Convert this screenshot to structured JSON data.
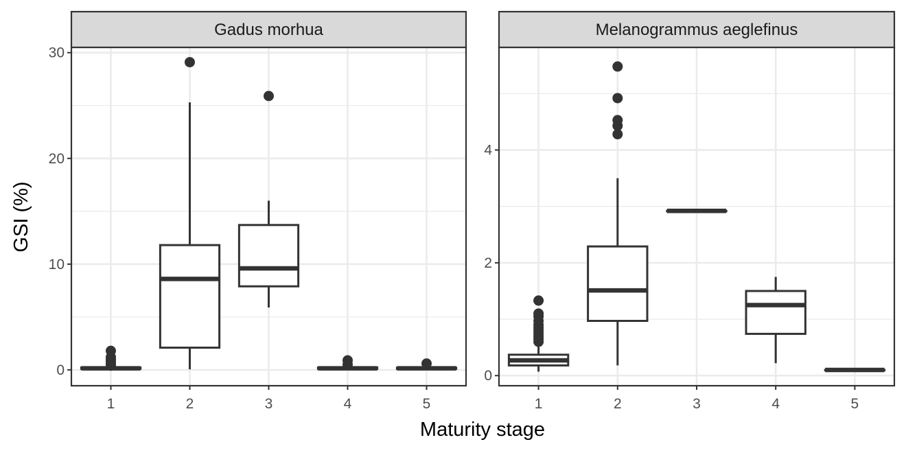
{
  "chart_data": {
    "type": "boxplot",
    "xlabel": "Maturity stage",
    "ylabel": "GSI (%)",
    "grid": true,
    "legend": "none",
    "colors": {
      "box": "#333333",
      "grid": "#ebebeb",
      "strip": "#d9d9d9",
      "panel_border": "#333333"
    },
    "panels": [
      {
        "title": "Gadus morhua",
        "categories": [
          "1",
          "2",
          "3",
          "4",
          "5"
        ],
        "ylim": [
          -1.5,
          30.5
        ],
        "yticks": [
          0,
          10,
          20,
          30
        ],
        "boxes": [
          {
            "category": "1",
            "min": 0.02,
            "q1": 0.1,
            "median": 0.15,
            "q3": 0.22,
            "max": 0.35,
            "outliers": [
              0.4,
              0.6,
              0.8,
              1.0,
              1.2,
              1.8
            ]
          },
          {
            "category": "2",
            "min": 0.05,
            "q1": 2.1,
            "median": 8.6,
            "q3": 11.8,
            "max": 25.3,
            "outliers": [
              29.1
            ]
          },
          {
            "category": "3",
            "min": 5.9,
            "q1": 7.9,
            "median": 9.6,
            "q3": 13.7,
            "max": 16.0,
            "outliers": [
              25.9
            ]
          },
          {
            "category": "4",
            "min": 0.02,
            "q1": 0.1,
            "median": 0.15,
            "q3": 0.22,
            "max": 0.35,
            "outliers": [
              0.5,
              0.9
            ]
          },
          {
            "category": "5",
            "min": 0.02,
            "q1": 0.1,
            "median": 0.15,
            "q3": 0.2,
            "max": 0.3,
            "outliers": [
              0.6
            ]
          }
        ]
      },
      {
        "title": "Melanogrammus aeglefinus",
        "categories": [
          "1",
          "2",
          "3",
          "4",
          "5"
        ],
        "ylim": [
          -0.18,
          5.82
        ],
        "yticks": [
          0,
          2,
          4
        ],
        "boxes": [
          {
            "category": "1",
            "min": 0.07,
            "q1": 0.18,
            "median": 0.27,
            "q3": 0.37,
            "max": 0.52,
            "outliers": [
              0.6,
              0.65,
              0.7,
              0.75,
              0.8,
              0.85,
              0.9,
              0.97,
              1.05,
              1.1,
              1.33
            ]
          },
          {
            "category": "2",
            "min": 0.18,
            "q1": 0.97,
            "median": 1.51,
            "q3": 2.29,
            "max": 3.5,
            "outliers": [
              4.28,
              4.43,
              4.53,
              4.92,
              5.48
            ]
          },
          {
            "category": "3",
            "min": 2.92,
            "q1": 2.92,
            "median": 2.92,
            "q3": 2.92,
            "max": 2.92,
            "outliers": []
          },
          {
            "category": "4",
            "min": 0.22,
            "q1": 0.74,
            "median": 1.25,
            "q3": 1.5,
            "max": 1.75,
            "outliers": []
          },
          {
            "category": "5",
            "min": 0.1,
            "q1": 0.1,
            "median": 0.1,
            "q3": 0.1,
            "max": 0.1,
            "outliers": []
          }
        ]
      }
    ]
  }
}
